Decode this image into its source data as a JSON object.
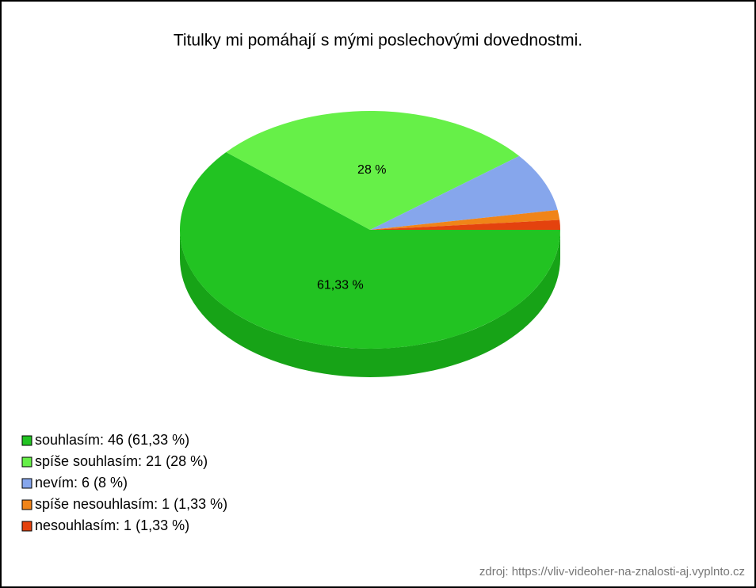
{
  "chart_data": {
    "type": "pie",
    "title": "Titulky mi pomáhají s mými poslechovými dovednostmi.",
    "categories": [
      "souhlasím",
      "spíše souhlasím",
      "nevím",
      "spíše nesouhlasím",
      "nesouhlasím"
    ],
    "values": [
      61.33,
      28,
      8,
      1.33,
      1.33
    ],
    "value_labels": [
      "61,33 %",
      "28 %",
      null,
      null,
      null
    ],
    "legend": [
      "souhlasím: 46 (61,33 %)",
      "spíše souhlasím: 21 (28 %)",
      "nevím: 6 (8 %)",
      "spíše nesouhlasím: 1 (1,33 %)",
      "nesouhlasím: 1 (1,33 %)"
    ],
    "colors": [
      "#22c322",
      "#66f048",
      "#86a6ec",
      "#f08418",
      "#e4420e"
    ],
    "side_colors": [
      "#17a317",
      "#4fcf35",
      "#5f80cc",
      "#c9650c",
      "#b82e06"
    ],
    "source": "zdroj: https://vliv-videoher-na-znalosti-aj.vyplnto.cz"
  }
}
